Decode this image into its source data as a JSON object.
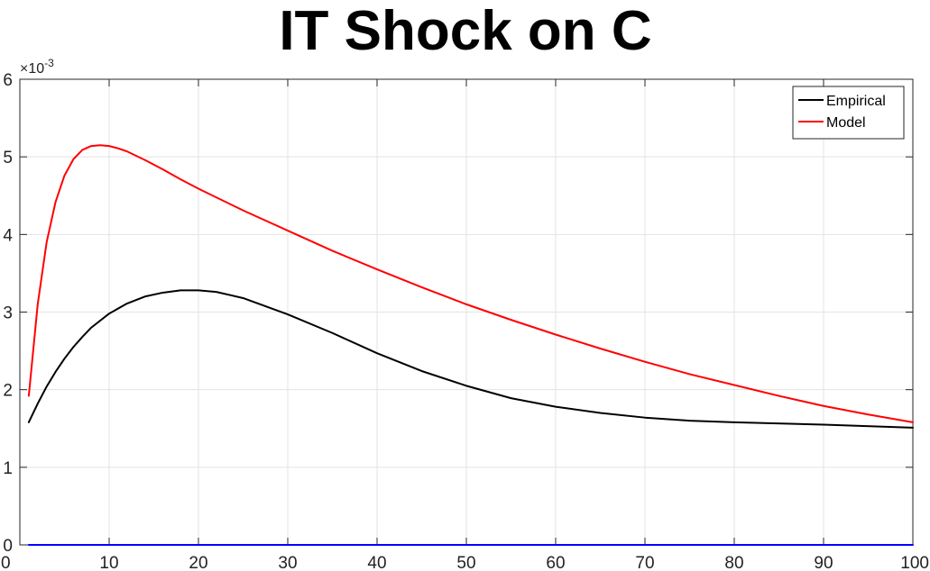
{
  "chart_data": {
    "type": "line",
    "title": "IT Shock on C",
    "xlabel": "",
    "ylabel": "",
    "y_exponent_label": "×10",
    "y_exponent_power": "-3",
    "xlim": [
      0,
      100
    ],
    "ylim": [
      0,
      6
    ],
    "x_ticks": [
      0,
      10,
      20,
      30,
      40,
      50,
      60,
      70,
      80,
      90,
      100
    ],
    "y_ticks": [
      0,
      1,
      2,
      3,
      4,
      5,
      6
    ],
    "grid": true,
    "legend_location": "top-right",
    "series": [
      {
        "name": "Empirical",
        "color": "#000000",
        "x": [
          1,
          2,
          3,
          4,
          5,
          6,
          7,
          8,
          10,
          12,
          14,
          16,
          18,
          20,
          22,
          25,
          30,
          35,
          40,
          45,
          50,
          55,
          60,
          65,
          70,
          75,
          80,
          90,
          100
        ],
        "y": [
          1.58,
          1.82,
          2.04,
          2.23,
          2.4,
          2.55,
          2.68,
          2.8,
          2.98,
          3.11,
          3.2,
          3.25,
          3.28,
          3.28,
          3.26,
          3.18,
          2.97,
          2.73,
          2.47,
          2.24,
          2.05,
          1.89,
          1.78,
          1.7,
          1.64,
          1.6,
          1.58,
          1.55,
          1.51
        ]
      },
      {
        "name": "Model",
        "color": "#ff0000",
        "x": [
          1,
          2,
          3,
          4,
          5,
          6,
          7,
          8,
          9,
          10,
          11,
          12,
          14,
          16,
          18,
          20,
          25,
          30,
          35,
          40,
          45,
          50,
          55,
          60,
          65,
          70,
          75,
          80,
          85,
          90,
          95,
          100
        ],
        "y": [
          1.92,
          3.1,
          3.9,
          4.42,
          4.76,
          4.97,
          5.09,
          5.14,
          5.15,
          5.14,
          5.11,
          5.07,
          4.96,
          4.84,
          4.71,
          4.59,
          4.31,
          4.05,
          3.79,
          3.55,
          3.32,
          3.1,
          2.9,
          2.71,
          2.53,
          2.36,
          2.2,
          2.06,
          1.92,
          1.79,
          1.68,
          1.58
        ]
      },
      {
        "name": "",
        "color": "#0000ff",
        "x": [
          1,
          100
        ],
        "y": [
          0,
          0
        ]
      }
    ]
  }
}
